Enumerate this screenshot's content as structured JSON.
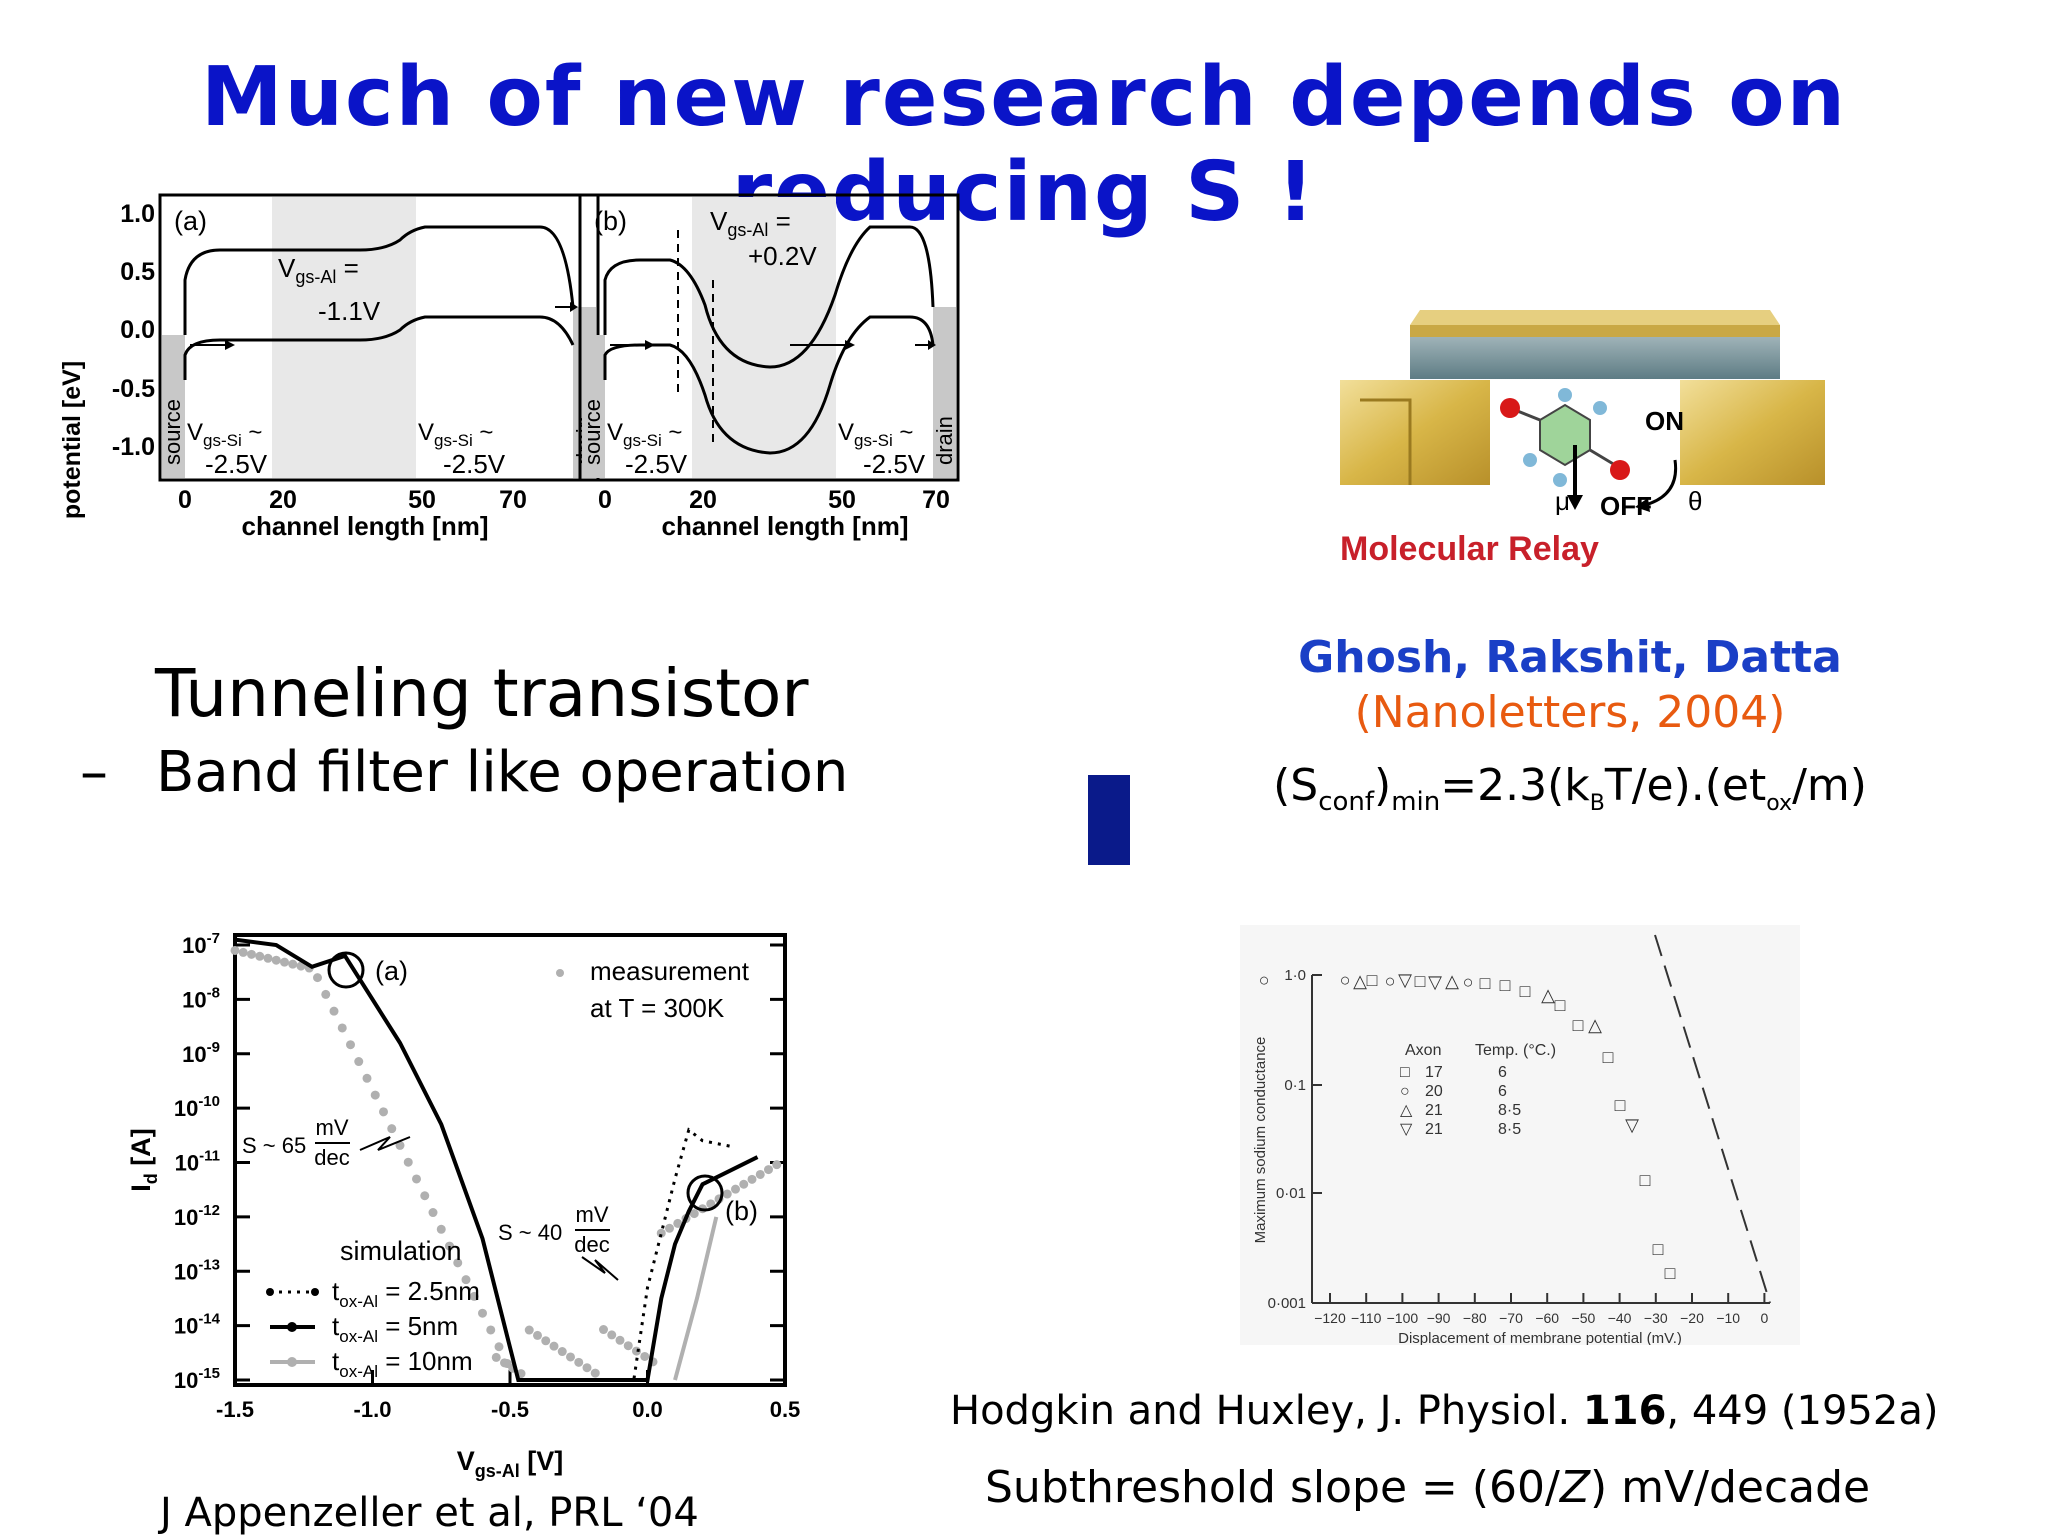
{
  "title": "Much of new research depends on reducing S !",
  "tunneling": {
    "heading": "Tunneling transistor",
    "bullet_dash": "–",
    "bullet": "Band filter like operation"
  },
  "band_diagram": {
    "ylabel": "potential [eV]",
    "xlabel": "channel length [nm]",
    "yticks": [
      "1.0",
      "0.5",
      "0.0",
      "-0.5",
      "-1.0"
    ],
    "xticks": [
      "0",
      "20",
      "50",
      "70"
    ],
    "source": "source",
    "drain": "drain",
    "panel_a": {
      "label": "(a)",
      "vgs_al": "V",
      "vgs_al_sub": "gs-Al",
      "vgs_al_eq": " =",
      "vgs_al_val": "-1.1V",
      "vgs_si": "V",
      "vgs_si_sub": "gs-Si",
      "vgs_si_eq": " ~",
      "vgs_si_val": "-2.5V"
    },
    "panel_b": {
      "label": "(b)",
      "vgs_al": "V",
      "vgs_al_sub": "gs-Al",
      "vgs_al_eq": " =",
      "vgs_al_val": "+0.2V",
      "vgs_si": "V",
      "vgs_si_sub": "gs-Si",
      "vgs_si_eq": " ~",
      "vgs_si_val": "-2.5V"
    }
  },
  "relay": {
    "caption": "Molecular Relay",
    "on": "ON",
    "off": "OFF",
    "mu": "μ",
    "theta": "θ"
  },
  "ghosh": {
    "authors": "Ghosh, Rakshit, Datta",
    "journal": "(Nanoletters, 2004)",
    "formula": {
      "a": "(S",
      "a_sub": "conf",
      "b": ")",
      "b_sub": "min",
      "c": "=2.3(k",
      "c_sub": "B",
      "d": "T/e).(et",
      "d_sub": "ox",
      "e": "/m)"
    }
  },
  "id_plot": {
    "ylabel": "I",
    "ylabel_sub": "d",
    "ylabel_unit": " [A]",
    "xlabel": "V",
    "xlabel_sub": "gs-Al",
    "xlabel_unit": " [V]",
    "xticks": [
      "-1.5",
      "-1.0",
      "-0.5",
      "0.0",
      "0.5"
    ],
    "ytick_exps": [
      "-7",
      "-8",
      "-9",
      "-10",
      "-11",
      "-12",
      "-13",
      "-14",
      "-15"
    ],
    "ytick_base": "10",
    "label_a": "(a)",
    "label_b": "(b)",
    "measurement": "measurement",
    "measurement_t": "at T = 300K",
    "s65": "S ~ 65",
    "s40": "S ~ 40",
    "mv": "mV",
    "dec": "dec",
    "simulation": "simulation",
    "legend": [
      {
        "t": "t",
        "sub": "ox-Al",
        "val": " = 2.5nm"
      },
      {
        "t": "t",
        "sub": "ox-Al",
        "val": " = 5nm"
      },
      {
        "t": "t",
        "sub": "ox-Al",
        "val": " = 10nm"
      }
    ],
    "citation": "J Appenzeller et al, PRL ‘04"
  },
  "hh_plot": {
    "ylabel": "Maximum sodium conductance",
    "xlabel": "Displacement of membrane potential (mV.)",
    "yticks": [
      "1·0",
      "0·1",
      "0·01",
      "0·001"
    ],
    "xticks": [
      "−120",
      "−110",
      "−100",
      "−90",
      "−80",
      "−70",
      "−60",
      "−50",
      "−40",
      "−30",
      "−20",
      "−10",
      "0"
    ],
    "legend_header_axon": "Axon",
    "legend_header_temp": "Temp. (°C.)",
    "legend_rows": [
      {
        "sym": "□",
        "axon": "17",
        "temp": "6"
      },
      {
        "sym": "○",
        "axon": "20",
        "temp": "6"
      },
      {
        "sym": "△",
        "axon": "21",
        "temp": "8·5"
      },
      {
        "sym": "▽",
        "axon": "21",
        "temp": "8·5"
      }
    ]
  },
  "hodgkin": {
    "ref_a": "Hodgkin and Huxley, J. Physiol. ",
    "ref_bold": "116",
    "ref_b": ", 449 (1952a)",
    "slope_a": "Subthreshold slope = (60/",
    "slope_z": "Z",
    "slope_b": ") mV/decade"
  },
  "colors": {
    "title": "#0a14c8",
    "ghosh_blue": "#1a3fc6",
    "journal_orange": "#e85a10",
    "bar": "#0a1a8a",
    "gray_measure": "#b0b0b0"
  }
}
